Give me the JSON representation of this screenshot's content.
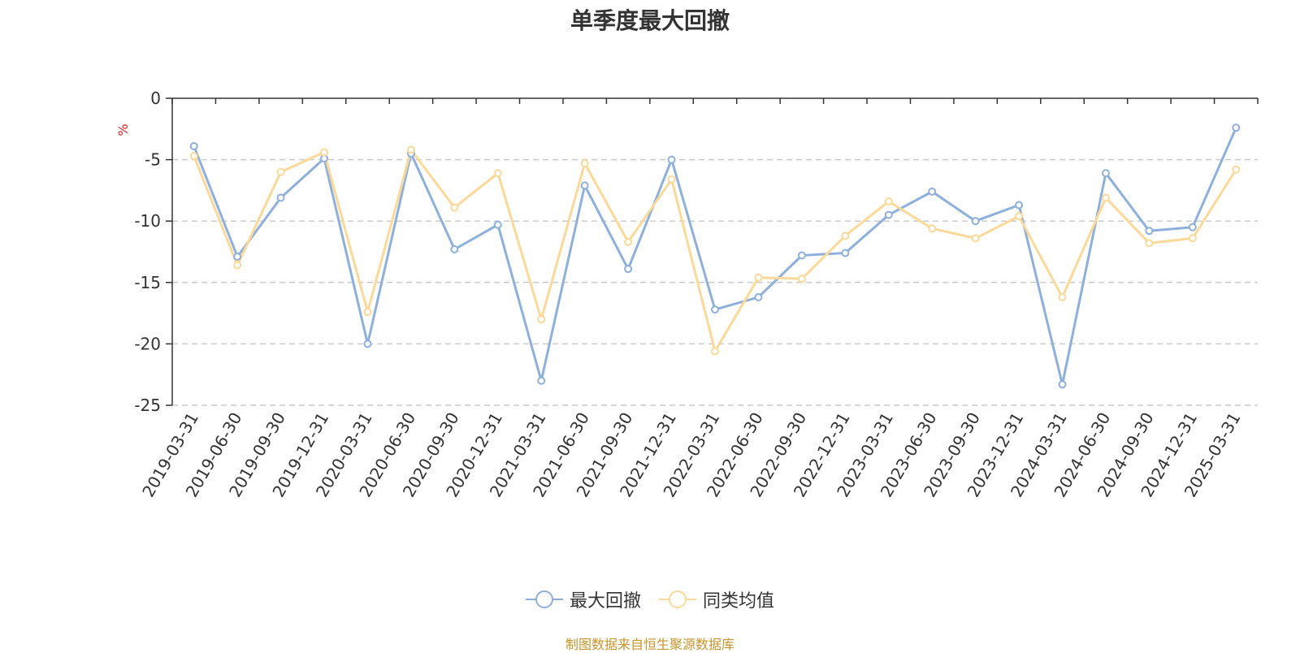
{
  "chart_data": {
    "type": "line",
    "title": "单季度最大回撤",
    "ylabel": "%",
    "ylim": [
      -25,
      0
    ],
    "yticks": [
      0,
      -5,
      -10,
      -15,
      -20,
      -25
    ],
    "grid": true,
    "legend_position": "bottom-center",
    "x": [
      "2019-03-31",
      "2019-06-30",
      "2019-09-30",
      "2019-12-31",
      "2020-03-31",
      "2020-06-30",
      "2020-09-30",
      "2020-12-31",
      "2021-03-31",
      "2021-06-30",
      "2021-09-30",
      "2021-12-31",
      "2022-03-31",
      "2022-06-30",
      "2022-09-30",
      "2022-12-31",
      "2023-03-31",
      "2023-06-30",
      "2023-09-30",
      "2023-12-31",
      "2024-03-31",
      "2024-06-30",
      "2024-09-30",
      "2024-12-31",
      "2025-03-31"
    ],
    "series": [
      {
        "name": "最大回撤",
        "color": "#8eb0dd",
        "values": [
          -3.9,
          -12.9,
          -8.1,
          -4.9,
          -20.0,
          -4.5,
          -12.3,
          -10.3,
          -23.0,
          -7.1,
          -13.9,
          -5.0,
          -17.2,
          -16.2,
          -12.8,
          -12.6,
          -9.5,
          -7.6,
          -10.0,
          -8.7,
          -23.3,
          -6.1,
          -10.8,
          -10.5,
          -2.4
        ]
      },
      {
        "name": "同类均值",
        "color": "#fcd998",
        "values": [
          -4.7,
          -13.6,
          -6.0,
          -4.4,
          -17.4,
          -4.2,
          -8.9,
          -6.1,
          -18.0,
          -5.3,
          -11.7,
          -6.6,
          -20.6,
          -14.6,
          -14.7,
          -11.2,
          -8.4,
          -10.6,
          -11.4,
          -9.6,
          -16.2,
          -8.1,
          -11.8,
          -11.4,
          -5.8
        ]
      }
    ]
  },
  "source_note": "制图数据来自恒生聚源数据库"
}
